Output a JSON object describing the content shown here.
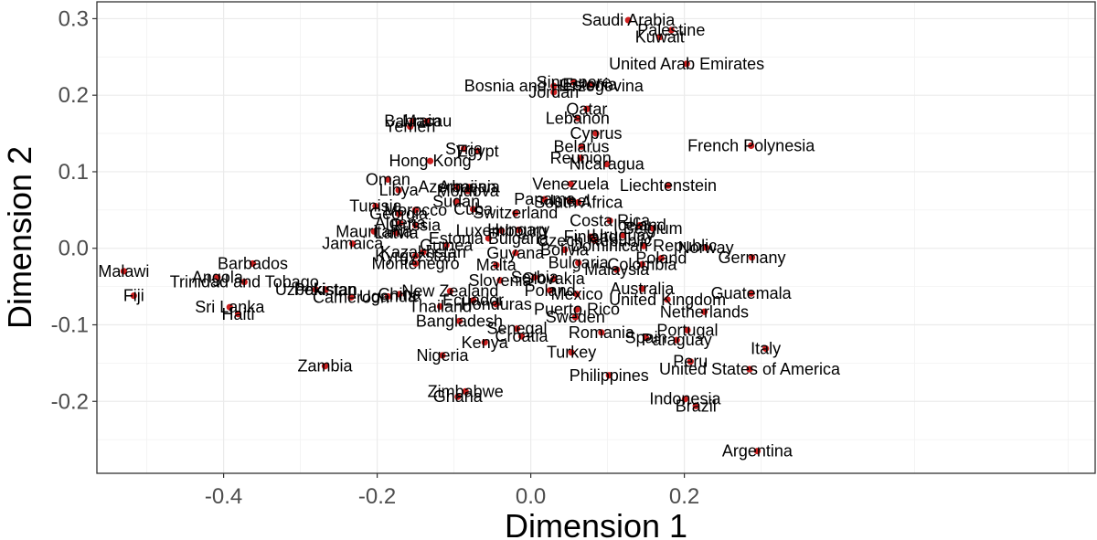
{
  "chart_data": {
    "type": "scatter",
    "xlabel": "Dimension 1",
    "ylabel": "Dimension 2",
    "xlim": [
      -0.565,
      0.735
    ],
    "ylim": [
      -0.294,
      0.322
    ],
    "x_ticks": [
      -0.4,
      -0.2,
      0.0,
      0.2
    ],
    "x_tick_labels": [
      "-0.4",
      "-0.2",
      "0.0",
      "0.2"
    ],
    "y_ticks": [
      -0.2,
      -0.1,
      0.0,
      0.1,
      0.2,
      0.3
    ],
    "y_tick_labels": [
      "-0.2",
      "-0.1",
      "0.0",
      "0.1",
      "0.2",
      "0.3"
    ],
    "grid": true,
    "point_color": "#cc1f1f",
    "points": [
      {
        "label": "Saudi Arabia",
        "x": 0.127,
        "y": 0.298
      },
      {
        "label": "Palestine",
        "x": 0.183,
        "y": 0.285
      },
      {
        "label": "Kuwait",
        "x": 0.168,
        "y": 0.276
      },
      {
        "label": "United Arab Emirates",
        "x": 0.203,
        "y": 0.241
      },
      {
        "label": "Singapore",
        "x": 0.056,
        "y": 0.217
      },
      {
        "label": "Bosnia and Herzegovina",
        "x": 0.03,
        "y": 0.212
      },
      {
        "label": "Jordan",
        "x": 0.03,
        "y": 0.204
      },
      {
        "label": "Estonia",
        "x": 0.077,
        "y": 0.214
      },
      {
        "label": "Qatar",
        "x": 0.073,
        "y": 0.182
      },
      {
        "label": "Lebanon",
        "x": 0.061,
        "y": 0.17
      },
      {
        "label": "Bahrain",
        "x": -0.154,
        "y": 0.166
      },
      {
        "label": "Macau",
        "x": -0.135,
        "y": 0.166
      },
      {
        "label": "Yemen",
        "x": -0.157,
        "y": 0.159
      },
      {
        "label": "Cyprus",
        "x": 0.085,
        "y": 0.15
      },
      {
        "label": "Belarus",
        "x": 0.066,
        "y": 0.133
      },
      {
        "label": "Syria",
        "x": -0.087,
        "y": 0.13
      },
      {
        "label": "Egypt",
        "x": -0.069,
        "y": 0.127
      },
      {
        "label": "Reunion",
        "x": 0.065,
        "y": 0.118
      },
      {
        "label": "French Polynesia",
        "x": 0.287,
        "y": 0.134
      },
      {
        "label": "Hong Kong",
        "x": -0.131,
        "y": 0.114
      },
      {
        "label": "Nicaragua",
        "x": 0.099,
        "y": 0.11
      },
      {
        "label": "Oman",
        "x": -0.186,
        "y": 0.09
      },
      {
        "label": "Libya",
        "x": -0.172,
        "y": 0.076
      },
      {
        "label": "Azerbaijan",
        "x": -0.096,
        "y": 0.08
      },
      {
        "label": "Armenia",
        "x": -0.08,
        "y": 0.08
      },
      {
        "label": "Moldova",
        "x": -0.082,
        "y": 0.075
      },
      {
        "label": "Venezuela",
        "x": 0.052,
        "y": 0.084
      },
      {
        "label": "Liechtenstein",
        "x": 0.179,
        "y": 0.082
      },
      {
        "label": "Sudan",
        "x": -0.097,
        "y": 0.061
      },
      {
        "label": "Panama",
        "x": 0.018,
        "y": 0.064
      },
      {
        "label": "Israel",
        "x": 0.051,
        "y": 0.062
      },
      {
        "label": "South Africa",
        "x": 0.062,
        "y": 0.06
      },
      {
        "label": "Tunisia",
        "x": -0.202,
        "y": 0.055
      },
      {
        "label": "Morocco",
        "x": -0.15,
        "y": 0.05
      },
      {
        "label": "Georgia",
        "x": -0.172,
        "y": 0.045
      },
      {
        "label": "Cuba",
        "x": -0.075,
        "y": 0.051
      },
      {
        "label": "Switzerland",
        "x": -0.02,
        "y": 0.046
      },
      {
        "label": "Costa Rica",
        "x": 0.103,
        "y": 0.036
      },
      {
        "label": "Algeria",
        "x": -0.17,
        "y": 0.033
      },
      {
        "label": "Russia",
        "x": -0.15,
        "y": 0.03
      },
      {
        "label": "Iceland",
        "x": 0.142,
        "y": 0.03
      },
      {
        "label": "Belgium",
        "x": 0.159,
        "y": 0.026
      },
      {
        "label": "Uruguay",
        "x": 0.12,
        "y": 0.017
      },
      {
        "label": "Mauritania",
        "x": -0.204,
        "y": 0.022
      },
      {
        "label": "Latvia",
        "x": -0.175,
        "y": 0.02
      },
      {
        "label": "Luxembourg",
        "x": -0.038,
        "y": 0.023
      },
      {
        "label": "Hungary",
        "x": -0.016,
        "y": 0.024
      },
      {
        "label": "Finland",
        "x": 0.078,
        "y": 0.015
      },
      {
        "label": "Jamaica",
        "x": -0.232,
        "y": 0.006
      },
      {
        "label": "Estonia Bulgaria",
        "x": -0.055,
        "y": 0.013
      },
      {
        "label": "Czech Republic",
        "x": 0.083,
        "y": 0.01
      },
      {
        "label": "Guinea",
        "x": -0.11,
        "y": 0.004
      },
      {
        "label": "Dominican Republic",
        "x": 0.147,
        "y": 0.003
      },
      {
        "label": "Norway",
        "x": 0.228,
        "y": 0.001
      },
      {
        "label": "Kazakhstan",
        "x": -0.14,
        "y": -0.005
      },
      {
        "label": "Kyrgyzstan",
        "x": -0.15,
        "y": -0.01
      },
      {
        "label": "Montenegro",
        "x": -0.15,
        "y": -0.02
      },
      {
        "label": "Guyana",
        "x": -0.02,
        "y": -0.006
      },
      {
        "label": "Bolivia",
        "x": 0.044,
        "y": -0.002
      },
      {
        "label": "Poland",
        "x": 0.17,
        "y": -0.013
      },
      {
        "label": "Germany",
        "x": 0.288,
        "y": -0.012
      },
      {
        "label": "Malta",
        "x": -0.045,
        "y": -0.022
      },
      {
        "label": "Bulgaria",
        "x": 0.062,
        "y": -0.019
      },
      {
        "label": "Malaysia",
        "x": 0.112,
        "y": -0.028
      },
      {
        "label": "Colombia",
        "x": 0.145,
        "y": -0.021
      },
      {
        "label": "Malawi",
        "x": -0.53,
        "y": -0.03
      },
      {
        "label": "Barbados",
        "x": -0.362,
        "y": -0.02
      },
      {
        "label": "Angola",
        "x": -0.408,
        "y": -0.038
      },
      {
        "label": "Trinidad and Tobago",
        "x": -0.373,
        "y": -0.044
      },
      {
        "label": "Slovenia",
        "x": -0.04,
        "y": -0.042
      },
      {
        "label": "Serbia",
        "x": 0.005,
        "y": -0.038
      },
      {
        "label": "Slovakia",
        "x": 0.03,
        "y": -0.04
      },
      {
        "label": "Australia",
        "x": 0.145,
        "y": -0.053
      },
      {
        "label": "Uzbekistan",
        "x": -0.28,
        "y": -0.054
      },
      {
        "label": "Pakistan",
        "x": -0.267,
        "y": -0.054
      },
      {
        "label": "New Zealand",
        "x": -0.105,
        "y": -0.056
      },
      {
        "label": "Poland",
        "x": 0.025,
        "y": -0.055
      },
      {
        "label": "Mexico",
        "x": 0.06,
        "y": -0.06
      },
      {
        "label": "Guatemala",
        "x": 0.287,
        "y": -0.059
      },
      {
        "label": "Fiji",
        "x": -0.517,
        "y": -0.062
      },
      {
        "label": "Cameroon",
        "x": -0.234,
        "y": -0.064
      },
      {
        "label": "Uganda",
        "x": -0.186,
        "y": -0.063
      },
      {
        "label": "China",
        "x": -0.171,
        "y": -0.06
      },
      {
        "label": "United Kingdom",
        "x": 0.178,
        "y": -0.067
      },
      {
        "label": "Ecuador",
        "x": -0.075,
        "y": -0.068
      },
      {
        "label": "Honduras",
        "x": -0.045,
        "y": -0.073
      },
      {
        "label": "Thailand",
        "x": -0.118,
        "y": -0.076
      },
      {
        "label": "Puerto Rico",
        "x": 0.06,
        "y": -0.08
      },
      {
        "label": "Netherlands",
        "x": 0.226,
        "y": -0.083
      },
      {
        "label": "Sri Lanka",
        "x": -0.392,
        "y": -0.077
      },
      {
        "label": "Haiti",
        "x": -0.381,
        "y": -0.086
      },
      {
        "label": "Sweden",
        "x": 0.058,
        "y": -0.09
      },
      {
        "label": "Bangladesh",
        "x": -0.093,
        "y": -0.095
      },
      {
        "label": "Senegal",
        "x": -0.018,
        "y": -0.105
      },
      {
        "label": "Portugal",
        "x": 0.204,
        "y": -0.107
      },
      {
        "label": "Romania",
        "x": 0.092,
        "y": -0.11
      },
      {
        "label": "Croatia",
        "x": -0.012,
        "y": -0.115
      },
      {
        "label": "Spain",
        "x": 0.15,
        "y": -0.117
      },
      {
        "label": "Paraguay",
        "x": 0.19,
        "y": -0.12
      },
      {
        "label": "Kenya",
        "x": -0.06,
        "y": -0.123
      },
      {
        "label": "Italy",
        "x": 0.306,
        "y": -0.131
      },
      {
        "label": "Turkey",
        "x": 0.053,
        "y": -0.136
      },
      {
        "label": "Nigeria",
        "x": -0.115,
        "y": -0.14
      },
      {
        "label": "Peru",
        "x": 0.208,
        "y": -0.148
      },
      {
        "label": "Zambia",
        "x": -0.268,
        "y": -0.154
      },
      {
        "label": "United States of America",
        "x": 0.285,
        "y": -0.158
      },
      {
        "label": "Philippines",
        "x": 0.102,
        "y": -0.166
      },
      {
        "label": "Zimbabwe",
        "x": -0.085,
        "y": -0.187
      },
      {
        "label": "Ghana",
        "x": -0.095,
        "y": -0.194
      },
      {
        "label": "Indonesia",
        "x": 0.201,
        "y": -0.197
      },
      {
        "label": "Brazil",
        "x": 0.215,
        "y": -0.206
      },
      {
        "label": "Argentina",
        "x": 0.295,
        "y": -0.265
      }
    ]
  }
}
